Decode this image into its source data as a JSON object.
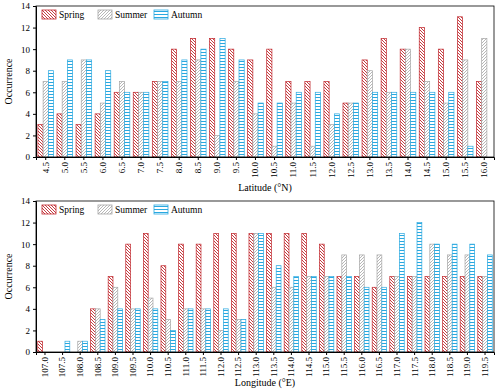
{
  "chart_data": [
    {
      "type": "bar",
      "x_label": "Latitude (°N)",
      "y_label": "Occurrence",
      "categories": [
        "4.5",
        "5.0",
        "5.5",
        "6.0",
        "6.5",
        "7.0",
        "7.5",
        "8.0",
        "8.5",
        "9.0",
        "9.5",
        "10.0",
        "10.5",
        "11.0",
        "11.5",
        "12.0",
        "12.5",
        "13.0",
        "13.5",
        "14.0",
        "14.5",
        "15.0",
        "15.5",
        "16.0"
      ],
      "series": [
        {
          "name": "Spring",
          "color": "#c0272d",
          "values": [
            3,
            4,
            3,
            4,
            6,
            6,
            7,
            10,
            11,
            11,
            10,
            9,
            10,
            7,
            7,
            7,
            5,
            9,
            11,
            10,
            12,
            10,
            13,
            7
          ]
        },
        {
          "name": "Summer",
          "color": "#a6a6a6",
          "values": [
            7,
            7,
            9,
            5,
            7,
            6,
            7,
            7,
            9,
            2,
            7,
            4,
            1,
            5,
            1,
            3,
            5,
            8,
            6,
            10,
            7,
            5,
            9,
            11
          ]
        },
        {
          "name": "Autumn",
          "color": "#29a8e0",
          "values": [
            8,
            9,
            9,
            8,
            6,
            6,
            7,
            9,
            10,
            11,
            9,
            5,
            5,
            6,
            6,
            4,
            5,
            6,
            6,
            6,
            6,
            6,
            1,
            0
          ]
        }
      ],
      "ylim": [
        0,
        14
      ],
      "yticks": [
        0,
        2,
        4,
        6,
        8,
        10,
        12,
        14
      ],
      "grid": false,
      "legend": "upper left"
    },
    {
      "type": "bar",
      "x_label": "Longitude (°E)",
      "y_label": "Occurrence",
      "categories": [
        "107.0",
        "107.5",
        "108.0",
        "108.5",
        "109.0",
        "109.5",
        "110.0",
        "110.5",
        "111.0",
        "111.5",
        "112.0",
        "112.5",
        "113.0",
        "113.5",
        "114.0",
        "114.5",
        "115.0",
        "115.5",
        "116.0",
        "116.5",
        "117.0",
        "117.5",
        "118.0",
        "118.5",
        "119.0",
        "119.5"
      ],
      "series": [
        {
          "name": "Spring",
          "color": "#c0272d",
          "values": [
            1,
            0,
            0,
            4,
            7,
            10,
            11,
            8,
            10,
            10,
            11,
            11,
            11,
            11,
            11,
            11,
            10,
            7,
            7,
            6,
            7,
            7,
            7,
            7,
            7,
            7
          ]
        },
        {
          "name": "Summer",
          "color": "#a6a6a6",
          "values": [
            0,
            0,
            1,
            4,
            6,
            4,
            5,
            3,
            4,
            4,
            2,
            3,
            11,
            6,
            6,
            7,
            7,
            9,
            9,
            9,
            7,
            7,
            10,
            9,
            9,
            7
          ]
        },
        {
          "name": "Autumn",
          "color": "#29a8e0",
          "values": [
            0,
            1,
            1,
            3,
            4,
            4,
            4,
            2,
            4,
            4,
            4,
            3,
            11,
            8,
            7,
            7,
            7,
            7,
            6,
            6,
            11,
            12,
            10,
            10,
            10,
            9
          ]
        }
      ],
      "ylim": [
        0,
        14
      ],
      "yticks": [
        0,
        2,
        4,
        6,
        8,
        10,
        12,
        14
      ],
      "grid": false,
      "legend": "upper left"
    }
  ]
}
